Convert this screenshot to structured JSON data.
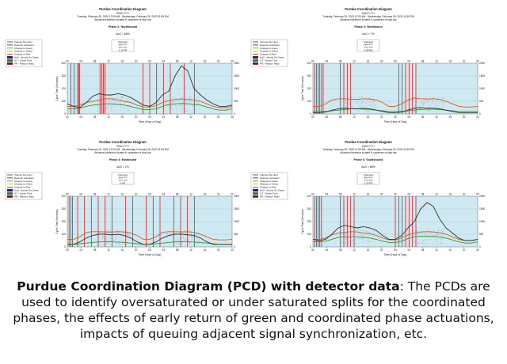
{
  "legend_items": [
    {
      "label": "Volume Per Hour",
      "color": "#333333"
    },
    {
      "label": "Detector Activation",
      "color": "#222222"
    },
    {
      "label": "Change to Green",
      "color": "#2e9e2e"
    },
    {
      "label": "Change to Yellow",
      "color": "#e0b400"
    },
    {
      "label": "Change to Red",
      "color": "#d42020"
    },
    {
      "label": "AoG - Arrival On Green",
      "color": "#1a1aa0"
    },
    {
      "label": "GT - Green Time",
      "color": "#2a7a2a"
    },
    {
      "label": "PR - Platoon Ratio",
      "color": "#8a0a0a"
    }
  ],
  "caption": {
    "bold": "Purdue Coordination Diagram (PCD) with detector data",
    "rest": ": The PCDs are used to identify oversaturated or under saturated splits for the coordinated phases, the effects of early return of green and coordinated phase actuations, impacts of queuing adjacent signal synchronization, etc."
  },
  "chart_data": [
    {
      "type": "line",
      "title": "Purdue Coordination Diagram",
      "subtitle": "SIG#?????",
      "date_range": "Tuesday, February 25, 2020 12:00 AM - Wednesday, February 26, 2020 11:59 PM",
      "note": "Advanced detector located ft. upstream of stop bar",
      "phase": "Phase 2: Northbound",
      "aog": "AoG = 66%",
      "summary": [
        "Unknown",
        "AR=???",
        "??? ???",
        "1.11 PR"
      ],
      "xlabel": "Time (Hour of Day)",
      "ylabel": "Cycle Time (Seconds)",
      "y2label": "Volume Per Hour",
      "x_ticks": [
        "00",
        "04",
        "08",
        "12",
        "16",
        "20",
        "00",
        "04",
        "08",
        "12",
        "16",
        "20",
        "00"
      ],
      "ylim": [
        0,
        400
      ],
      "y2lim": [
        0,
        2000
      ],
      "y_ticks": [
        0,
        100,
        200,
        300,
        400
      ],
      "y2_ticks": [
        0,
        500,
        1000,
        1500,
        2000
      ],
      "red_spikes": [
        1,
        2,
        3,
        3.3,
        3.6,
        9.5,
        10,
        10.5,
        11,
        22,
        24,
        26,
        28,
        30,
        34,
        37
      ],
      "series": [
        {
          "color": "#2e9e2e",
          "values": [
            40,
            40,
            45,
            60,
            70,
            75,
            80,
            80,
            75,
            70,
            60,
            45,
            35,
            35,
            40,
            60,
            75,
            80,
            82,
            80,
            75,
            70,
            55,
            40,
            30,
            30,
            40
          ]
        },
        {
          "color": "#e05a10",
          "values": [
            60,
            60,
            70,
            90,
            100,
            110,
            120,
            120,
            110,
            100,
            90,
            70,
            55,
            55,
            65,
            90,
            105,
            115,
            118,
            115,
            110,
            100,
            80,
            60,
            50,
            50,
            60
          ]
        },
        {
          "color": "#333333",
          "values": [
            80,
            60,
            50,
            90,
            140,
            160,
            150,
            150,
            160,
            150,
            130,
            100,
            70,
            60,
            90,
            150,
            180,
            300,
            380,
            340,
            200,
            150,
            110,
            80,
            60,
            60,
            70
          ]
        }
      ]
    },
    {
      "type": "line",
      "title": "Purdue Coordination Diagram",
      "subtitle": "SIG#?????",
      "date_range": "Tuesday, February 25, 2020 12:00 AM - Wednesday, February 26, 2020 11:59 PM",
      "note": "Advanced detector located ft. upstream of stop bar",
      "phase": "Phase 3: Westbound",
      "aog": "AoG = 7%",
      "summary": [
        "Unknown",
        "AR=???",
        "??? ???",
        "0.28 PR"
      ],
      "xlabel": "Time (Hour of Day)",
      "ylabel": "Cycle Time (Seconds)",
      "y2label": "Volume Per Hour",
      "x_ticks": [
        "00",
        "04",
        "08",
        "12",
        "16",
        "20",
        "00",
        "04",
        "08",
        "12",
        "16",
        "20",
        "00"
      ],
      "ylim": [
        0,
        400
      ],
      "y2lim": [
        0,
        2000
      ],
      "y_ticks": [
        0,
        100,
        200,
        300,
        400
      ],
      "y2_ticks": [
        0,
        500,
        1000,
        1500,
        2000
      ],
      "red_spikes": [
        0.5,
        1,
        1.5,
        2,
        2.5,
        3,
        8,
        9,
        10,
        11,
        25,
        26,
        27,
        28,
        29,
        30
      ],
      "series": [
        {
          "color": "#2e9e2e",
          "values": [
            20,
            20,
            20,
            25,
            30,
            35,
            40,
            40,
            38,
            35,
            30,
            25,
            20,
            20,
            20,
            25,
            30,
            35,
            38,
            38,
            35,
            30,
            25,
            20,
            20,
            20,
            20
          ]
        },
        {
          "color": "#e05a10",
          "values": [
            60,
            60,
            80,
            110,
            120,
            120,
            115,
            115,
            120,
            118,
            110,
            90,
            60,
            60,
            80,
            110,
            125,
            120,
            118,
            120,
            115,
            100,
            80,
            60,
            55,
            55,
            60
          ]
        },
        {
          "color": "#333333",
          "values": [
            10,
            10,
            15,
            30,
            40,
            45,
            40,
            40,
            45,
            40,
            30,
            20,
            10,
            10,
            15,
            30,
            45,
            50,
            45,
            45,
            40,
            30,
            20,
            10,
            10,
            10,
            10
          ]
        }
      ]
    },
    {
      "type": "line",
      "title": "Purdue Coordination Diagram",
      "subtitle": "SIG#?????",
      "date_range": "Tuesday, February 25, 2020 12:00 AM - Wednesday, February 26, 2020 11:59 PM",
      "note": "Advanced detector located ft. upstream of stop bar",
      "phase": "Phase 4: Eastbound",
      "aog": "AoG = 1%",
      "summary": [
        "Unknown",
        "AR=???",
        "??? ???",
        "0 PR"
      ],
      "xlabel": "Time (Hour of Day)",
      "ylabel": "Cycle Time (Seconds)",
      "y2label": "Volume Per Hour",
      "x_ticks": [
        "00",
        "04",
        "08",
        "12",
        "16",
        "20",
        "00",
        "04",
        "08",
        "12",
        "16",
        "20",
        "00"
      ],
      "ylim": [
        0,
        400
      ],
      "y2lim": [
        0,
        2000
      ],
      "y_ticks": [
        0,
        100,
        200,
        300,
        400
      ],
      "y2_ticks": [
        0,
        500,
        1000,
        1500,
        2000
      ],
      "red_spikes": [
        0.5,
        1,
        1.5,
        3,
        5,
        7,
        9,
        11,
        13,
        17,
        19,
        23,
        25,
        27,
        31,
        33,
        35,
        37
      ],
      "series": [
        {
          "color": "#2e9e2e",
          "values": [
            20,
            20,
            25,
            30,
            35,
            40,
            40,
            40,
            38,
            35,
            30,
            25,
            20,
            20,
            25,
            30,
            35,
            40,
            40,
            40,
            38,
            35,
            30,
            25,
            20,
            20,
            20
          ]
        },
        {
          "color": "#e05a10",
          "values": [
            60,
            60,
            80,
            115,
            120,
            120,
            118,
            118,
            120,
            118,
            110,
            90,
            60,
            60,
            80,
            115,
            120,
            120,
            118,
            120,
            115,
            100,
            80,
            60,
            55,
            55,
            60
          ]
        },
        {
          "color": "#333333",
          "values": [
            20,
            20,
            40,
            70,
            90,
            100,
            100,
            95,
            100,
            90,
            70,
            40,
            20,
            20,
            40,
            70,
            90,
            100,
            100,
            95,
            90,
            70,
            40,
            20,
            20,
            20,
            20
          ]
        }
      ]
    },
    {
      "type": "line",
      "title": "Purdue Coordination Diagram",
      "subtitle": "SIG#?????",
      "date_range": "Tuesday, February 25, 2020 12:00 AM - Wednesday, February 26, 2020 11:59 PM",
      "note": "Advanced detector located ft. upstream of stop bar",
      "phase": "Phase 6: Southbound",
      "aog": "AoG = 88%",
      "summary": [
        "Unknown",
        "AR=???",
        "??? ???",
        "1.33 PR"
      ],
      "xlabel": "Time (Hour of Day)",
      "ylabel": "Cycle Time (Seconds)",
      "y2label": "Volume Per Hour",
      "x_ticks": [
        "00",
        "04",
        "08",
        "12",
        "16",
        "20",
        "00",
        "04",
        "08",
        "12",
        "16",
        "20",
        "00"
      ],
      "ylim": [
        0,
        400
      ],
      "y2lim": [
        0,
        2000
      ],
      "y_ticks": [
        0,
        100,
        200,
        300,
        400
      ],
      "y2_ticks": [
        0,
        500,
        1000,
        1500,
        2000
      ],
      "red_spikes": [
        0.5,
        1,
        1.5,
        2,
        2.5,
        8,
        9,
        10,
        11,
        12,
        24,
        25,
        26,
        27,
        28,
        29,
        30
      ],
      "series": [
        {
          "color": "#2e9e2e",
          "values": [
            40,
            40,
            45,
            60,
            75,
            80,
            80,
            80,
            75,
            70,
            60,
            45,
            35,
            35,
            45,
            65,
            80,
            85,
            85,
            82,
            78,
            70,
            55,
            40,
            30,
            30,
            40
          ]
        },
        {
          "color": "#e05a10",
          "values": [
            60,
            60,
            70,
            95,
            110,
            115,
            120,
            118,
            110,
            105,
            90,
            70,
            55,
            55,
            70,
            95,
            110,
            118,
            120,
            118,
            112,
            100,
            80,
            60,
            50,
            50,
            60
          ]
        },
        {
          "color": "#333333",
          "values": [
            60,
            50,
            60,
            100,
            150,
            170,
            160,
            150,
            160,
            150,
            130,
            90,
            60,
            60,
            90,
            150,
            200,
            300,
            350,
            320,
            220,
            150,
            110,
            70,
            50,
            50,
            60
          ]
        }
      ]
    }
  ]
}
